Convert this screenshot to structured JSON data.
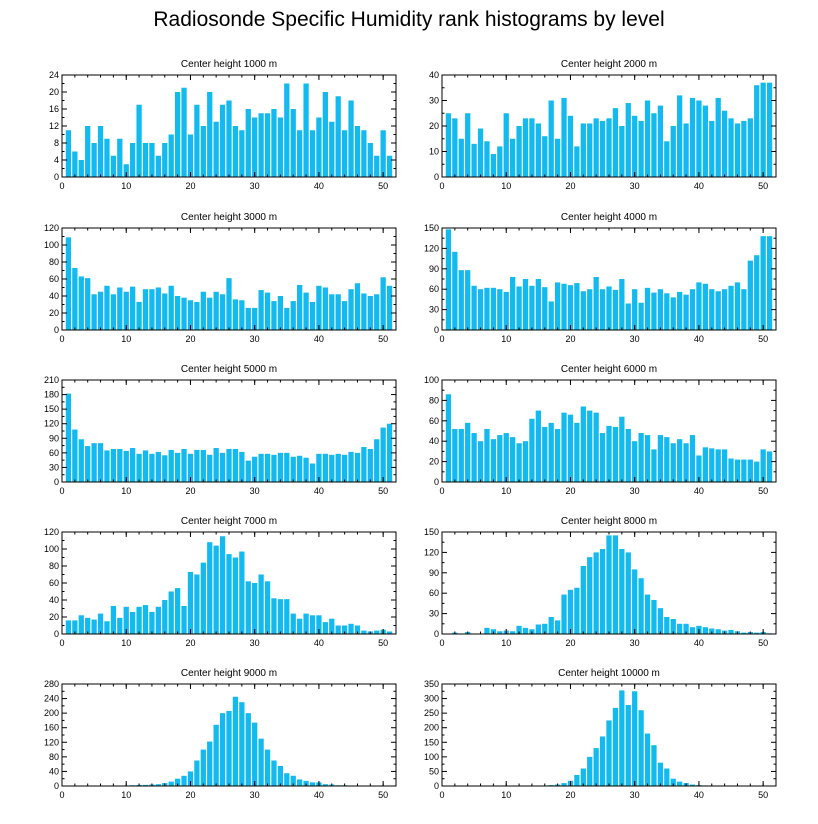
{
  "title": "Radiosonde Specific Humidity rank histograms by level",
  "bar_color": "#12baf0",
  "chart_data": [
    {
      "type": "bar",
      "title": "Center height 1000 m",
      "xlim": [
        0,
        52
      ],
      "ylim": [
        0,
        24
      ],
      "xticks": [
        0,
        10,
        20,
        30,
        40,
        50
      ],
      "yticks": [
        0,
        4,
        8,
        12,
        16,
        20,
        24
      ],
      "x": [
        1,
        2,
        3,
        4,
        5,
        6,
        7,
        8,
        9,
        10,
        11,
        12,
        13,
        14,
        15,
        16,
        17,
        18,
        19,
        20,
        21,
        22,
        23,
        24,
        25,
        26,
        27,
        28,
        29,
        30,
        31,
        32,
        33,
        34,
        35,
        36,
        37,
        38,
        39,
        40,
        41,
        42,
        43,
        44,
        45,
        46,
        47,
        48,
        49,
        50,
        51
      ],
      "values": [
        11,
        6,
        4,
        12,
        8,
        12,
        9,
        5,
        9,
        3,
        8,
        17,
        8,
        8,
        5,
        8,
        10,
        20,
        21,
        10,
        17,
        12,
        20,
        13,
        17,
        18,
        12,
        11,
        16,
        14,
        15,
        15,
        16,
        14,
        22,
        16,
        11,
        22,
        11,
        14,
        20,
        13,
        19,
        11,
        18,
        12,
        11,
        8,
        5,
        11,
        5
      ]
    },
    {
      "type": "bar",
      "title": "Center height 2000 m",
      "xlim": [
        0,
        52
      ],
      "ylim": [
        0,
        40
      ],
      "xticks": [
        0,
        10,
        20,
        30,
        40,
        50
      ],
      "yticks": [
        0,
        10,
        20,
        30,
        40
      ],
      "x": [
        1,
        2,
        3,
        4,
        5,
        6,
        7,
        8,
        9,
        10,
        11,
        12,
        13,
        14,
        15,
        16,
        17,
        18,
        19,
        20,
        21,
        22,
        23,
        24,
        25,
        26,
        27,
        28,
        29,
        30,
        31,
        32,
        33,
        34,
        35,
        36,
        37,
        38,
        39,
        40,
        41,
        42,
        43,
        44,
        45,
        46,
        47,
        48,
        49,
        50,
        51
      ],
      "values": [
        25,
        23,
        15,
        25,
        13,
        19,
        14,
        9,
        12,
        25,
        15,
        20,
        23,
        23,
        21,
        16,
        30,
        15,
        31,
        24,
        12,
        21,
        21,
        23,
        22,
        23,
        27,
        20,
        29,
        24,
        22,
        30,
        25,
        28,
        14,
        20,
        32,
        21,
        31,
        30,
        28,
        22,
        31,
        26,
        23,
        21,
        22,
        23,
        36,
        37,
        37
      ]
    },
    {
      "type": "bar",
      "title": "Center height 3000 m",
      "xlim": [
        0,
        52
      ],
      "ylim": [
        0,
        120
      ],
      "xticks": [
        0,
        10,
        20,
        30,
        40,
        50
      ],
      "yticks": [
        0,
        20,
        40,
        60,
        80,
        100,
        120
      ],
      "x": [
        1,
        2,
        3,
        4,
        5,
        6,
        7,
        8,
        9,
        10,
        11,
        12,
        13,
        14,
        15,
        16,
        17,
        18,
        19,
        20,
        21,
        22,
        23,
        24,
        25,
        26,
        27,
        28,
        29,
        30,
        31,
        32,
        33,
        34,
        35,
        36,
        37,
        38,
        39,
        40,
        41,
        42,
        43,
        44,
        45,
        46,
        47,
        48,
        49,
        50,
        51
      ],
      "values": [
        109,
        73,
        63,
        61,
        42,
        45,
        52,
        42,
        50,
        45,
        51,
        33,
        48,
        48,
        50,
        43,
        52,
        40,
        38,
        35,
        33,
        45,
        38,
        45,
        42,
        61,
        36,
        35,
        26,
        26,
        47,
        44,
        34,
        40,
        26,
        34,
        53,
        44,
        33,
        52,
        50,
        42,
        42,
        34,
        48,
        55,
        43,
        40,
        42,
        62,
        52
      ]
    },
    {
      "type": "bar",
      "title": "Center height 4000 m",
      "xlim": [
        0,
        52
      ],
      "ylim": [
        0,
        150
      ],
      "xticks": [
        0,
        10,
        20,
        30,
        40,
        50
      ],
      "yticks": [
        0,
        30,
        60,
        90,
        120,
        150
      ],
      "x": [
        1,
        2,
        3,
        4,
        5,
        6,
        7,
        8,
        9,
        10,
        11,
        12,
        13,
        14,
        15,
        16,
        17,
        18,
        19,
        20,
        21,
        22,
        23,
        24,
        25,
        26,
        27,
        28,
        29,
        30,
        31,
        32,
        33,
        34,
        35,
        36,
        37,
        38,
        39,
        40,
        41,
        42,
        43,
        44,
        45,
        46,
        47,
        48,
        49,
        50,
        51
      ],
      "values": [
        148,
        115,
        88,
        88,
        65,
        60,
        62,
        62,
        60,
        56,
        78,
        64,
        75,
        65,
        75,
        63,
        42,
        70,
        68,
        66,
        69,
        57,
        60,
        78,
        60,
        64,
        59,
        75,
        39,
        60,
        40,
        62,
        55,
        60,
        54,
        48,
        56,
        52,
        60,
        70,
        68,
        60,
        57,
        60,
        65,
        70,
        60,
        102,
        110,
        138,
        138
      ]
    },
    {
      "type": "bar",
      "title": "Center height 5000 m",
      "xlim": [
        0,
        52
      ],
      "ylim": [
        0,
        210
      ],
      "xticks": [
        0,
        10,
        20,
        30,
        40,
        50
      ],
      "yticks": [
        0,
        30,
        60,
        90,
        120,
        150,
        180,
        210
      ],
      "x": [
        1,
        2,
        3,
        4,
        5,
        6,
        7,
        8,
        9,
        10,
        11,
        12,
        13,
        14,
        15,
        16,
        17,
        18,
        19,
        20,
        21,
        22,
        23,
        24,
        25,
        26,
        27,
        28,
        29,
        30,
        31,
        32,
        33,
        34,
        35,
        36,
        37,
        38,
        39,
        40,
        41,
        42,
        43,
        44,
        45,
        46,
        47,
        48,
        49,
        50,
        51
      ],
      "values": [
        182,
        108,
        88,
        74,
        80,
        80,
        65,
        68,
        68,
        64,
        70,
        58,
        65,
        58,
        62,
        55,
        66,
        60,
        68,
        58,
        66,
        66,
        56,
        70,
        60,
        68,
        68,
        62,
        44,
        52,
        58,
        58,
        56,
        60,
        60,
        52,
        54,
        50,
        38,
        58,
        58,
        56,
        58,
        56,
        62,
        60,
        72,
        68,
        88,
        112,
        120
      ]
    },
    {
      "type": "bar",
      "title": "Center height 6000 m",
      "xlim": [
        0,
        52
      ],
      "ylim": [
        0,
        100
      ],
      "xticks": [
        0,
        10,
        20,
        30,
        40,
        50
      ],
      "yticks": [
        0,
        20,
        40,
        60,
        80,
        100
      ],
      "x": [
        1,
        2,
        3,
        4,
        5,
        6,
        7,
        8,
        9,
        10,
        11,
        12,
        13,
        14,
        15,
        16,
        17,
        18,
        19,
        20,
        21,
        22,
        23,
        24,
        25,
        26,
        27,
        28,
        29,
        30,
        31,
        32,
        33,
        34,
        35,
        36,
        37,
        38,
        39,
        40,
        41,
        42,
        43,
        44,
        45,
        46,
        47,
        48,
        49,
        50,
        51
      ],
      "values": [
        86,
        52,
        52,
        58,
        48,
        40,
        52,
        42,
        46,
        48,
        44,
        38,
        40,
        62,
        70,
        54,
        58,
        52,
        68,
        66,
        58,
        74,
        70,
        68,
        48,
        55,
        54,
        64,
        52,
        40,
        48,
        46,
        32,
        46,
        44,
        38,
        42,
        38,
        46,
        26,
        34,
        33,
        32,
        32,
        23,
        22,
        22,
        22,
        20,
        32,
        30
      ]
    },
    {
      "type": "bar",
      "title": "Center height 7000 m",
      "xlim": [
        0,
        52
      ],
      "ylim": [
        0,
        120
      ],
      "xticks": [
        0,
        10,
        20,
        30,
        40,
        50
      ],
      "yticks": [
        0,
        20,
        40,
        60,
        80,
        100,
        120
      ],
      "x": [
        1,
        2,
        3,
        4,
        5,
        6,
        7,
        8,
        9,
        10,
        11,
        12,
        13,
        14,
        15,
        16,
        17,
        18,
        19,
        20,
        21,
        22,
        23,
        24,
        25,
        26,
        27,
        28,
        29,
        30,
        31,
        32,
        33,
        34,
        35,
        36,
        37,
        38,
        39,
        40,
        41,
        42,
        43,
        44,
        45,
        46,
        47,
        48,
        49,
        50,
        51
      ],
      "values": [
        16,
        16,
        22,
        19,
        17,
        24,
        15,
        33,
        19,
        32,
        26,
        32,
        34,
        26,
        32,
        40,
        50,
        54,
        33,
        73,
        70,
        84,
        108,
        104,
        115,
        94,
        90,
        97,
        62,
        60,
        70,
        62,
        42,
        41,
        41,
        24,
        18,
        24,
        22,
        22,
        14,
        18,
        10,
        10,
        12,
        10,
        4,
        3,
        4,
        5,
        3
      ]
    },
    {
      "type": "bar",
      "title": "Center height 8000 m",
      "xlim": [
        0,
        52
      ],
      "ylim": [
        0,
        150
      ],
      "xticks": [
        0,
        10,
        20,
        30,
        40,
        50
      ],
      "yticks": [
        0,
        30,
        60,
        90,
        120,
        150
      ],
      "x": [
        1,
        2,
        3,
        4,
        5,
        6,
        7,
        8,
        9,
        10,
        11,
        12,
        13,
        14,
        15,
        16,
        17,
        18,
        19,
        20,
        21,
        22,
        23,
        24,
        25,
        26,
        27,
        28,
        29,
        30,
        31,
        32,
        33,
        34,
        35,
        36,
        37,
        38,
        39,
        40,
        41,
        42,
        43,
        44,
        45,
        46,
        47,
        48,
        49,
        50,
        51
      ],
      "values": [
        0,
        2,
        0,
        3,
        0,
        0,
        9,
        7,
        4,
        5,
        4,
        12,
        9,
        7,
        14,
        15,
        25,
        20,
        58,
        65,
        68,
        100,
        113,
        120,
        125,
        145,
        145,
        125,
        120,
        95,
        82,
        58,
        50,
        38,
        25,
        22,
        15,
        15,
        10,
        12,
        10,
        8,
        7,
        5,
        6,
        4,
        2,
        3,
        2,
        3,
        1
      ]
    },
    {
      "type": "bar",
      "title": "Center height 9000 m",
      "xlim": [
        0,
        52
      ],
      "ylim": [
        0,
        280
      ],
      "xticks": [
        0,
        10,
        20,
        30,
        40,
        50
      ],
      "yticks": [
        0,
        40,
        80,
        120,
        160,
        200,
        240,
        280
      ],
      "x": [
        1,
        2,
        3,
        4,
        5,
        6,
        7,
        8,
        9,
        10,
        11,
        12,
        13,
        14,
        15,
        16,
        17,
        18,
        19,
        20,
        21,
        22,
        23,
        24,
        25,
        26,
        27,
        28,
        29,
        30,
        31,
        32,
        33,
        34,
        35,
        36,
        37,
        38,
        39,
        40,
        41,
        42,
        43,
        44,
        45,
        46,
        47,
        48,
        49,
        50,
        51
      ],
      "values": [
        0,
        0,
        0,
        0,
        0,
        0,
        0,
        0,
        0,
        0,
        2,
        3,
        3,
        4,
        5,
        8,
        12,
        20,
        28,
        40,
        70,
        100,
        122,
        168,
        200,
        206,
        245,
        230,
        200,
        174,
        130,
        100,
        70,
        55,
        35,
        28,
        18,
        14,
        10,
        10,
        5,
        4,
        2,
        2,
        1,
        1,
        0,
        0,
        0,
        0,
        0
      ]
    },
    {
      "type": "bar",
      "title": "Center height 10000 m",
      "xlim": [
        0,
        52
      ],
      "ylim": [
        0,
        350
      ],
      "xticks": [
        0,
        10,
        20,
        30,
        40,
        50
      ],
      "yticks": [
        0,
        50,
        100,
        150,
        200,
        250,
        300,
        350
      ],
      "x": [
        1,
        2,
        3,
        4,
        5,
        6,
        7,
        8,
        9,
        10,
        11,
        12,
        13,
        14,
        15,
        16,
        17,
        18,
        19,
        20,
        21,
        22,
        23,
        24,
        25,
        26,
        27,
        28,
        29,
        30,
        31,
        32,
        33,
        34,
        35,
        36,
        37,
        38,
        39,
        40,
        41,
        42,
        43,
        44,
        45,
        46,
        47,
        48,
        49,
        50,
        51
      ],
      "values": [
        0,
        0,
        0,
        0,
        0,
        0,
        0,
        0,
        0,
        0,
        0,
        0,
        0,
        0,
        0,
        0,
        3,
        5,
        10,
        18,
        38,
        60,
        100,
        130,
        170,
        225,
        268,
        328,
        278,
        325,
        260,
        180,
        140,
        80,
        60,
        25,
        15,
        10,
        5,
        3,
        2,
        1,
        0,
        0,
        0,
        0,
        0,
        0,
        0,
        0,
        0
      ]
    }
  ]
}
